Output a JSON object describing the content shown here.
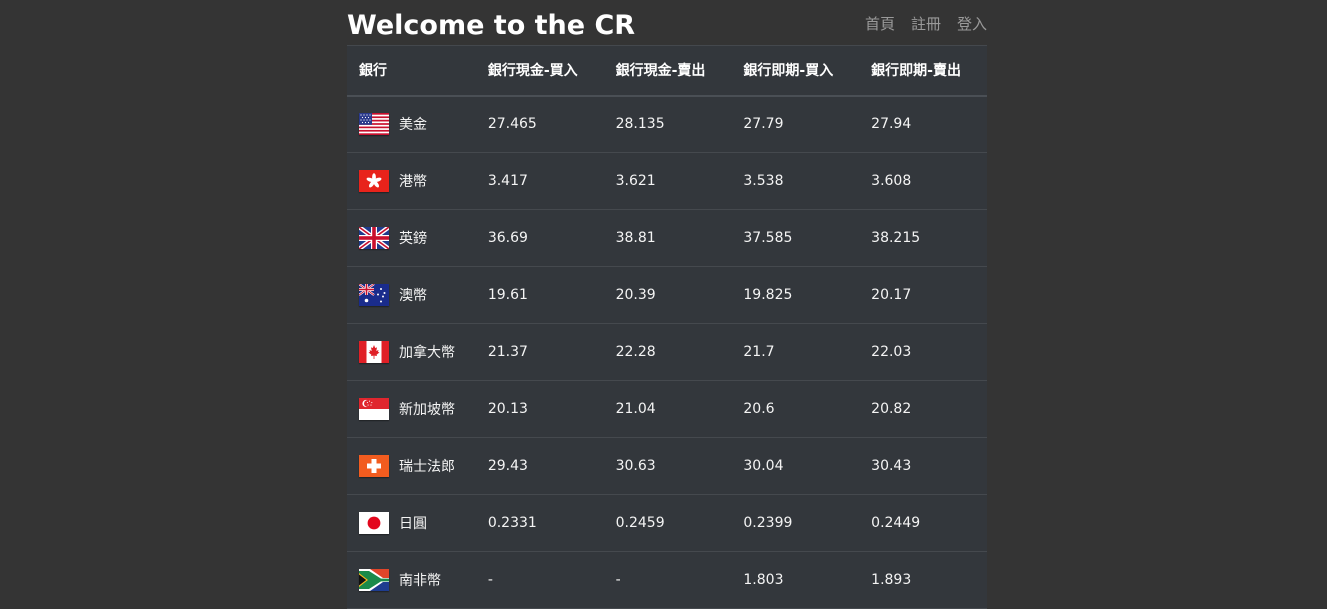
{
  "header": {
    "title": "Welcome to the CR",
    "nav": [
      {
        "label": "首頁"
      },
      {
        "label": "註冊"
      },
      {
        "label": "登入"
      }
    ]
  },
  "table": {
    "columns": [
      "銀行",
      "銀行現金-買入",
      "銀行現金-賣出",
      "銀行即期-買入",
      "銀行即期-賣出"
    ],
    "rows": [
      {
        "flag": "us-flag-icon",
        "name": "美金",
        "cash_buy": "27.465",
        "cash_sell": "28.135",
        "spot_buy": "27.79",
        "spot_sell": "27.94"
      },
      {
        "flag": "hk-flag-icon",
        "name": "港幣",
        "cash_buy": "3.417",
        "cash_sell": "3.621",
        "spot_buy": "3.538",
        "spot_sell": "3.608"
      },
      {
        "flag": "uk-flag-icon",
        "name": "英鎊",
        "cash_buy": "36.69",
        "cash_sell": "38.81",
        "spot_buy": "37.585",
        "spot_sell": "38.215"
      },
      {
        "flag": "au-flag-icon",
        "name": "澳幣",
        "cash_buy": "19.61",
        "cash_sell": "20.39",
        "spot_buy": "19.825",
        "spot_sell": "20.17"
      },
      {
        "flag": "ca-flag-icon",
        "name": "加拿大幣",
        "cash_buy": "21.37",
        "cash_sell": "22.28",
        "spot_buy": "21.7",
        "spot_sell": "22.03"
      },
      {
        "flag": "sg-flag-icon",
        "name": "新加坡幣",
        "cash_buy": "20.13",
        "cash_sell": "21.04",
        "spot_buy": "20.6",
        "spot_sell": "20.82"
      },
      {
        "flag": "ch-flag-icon",
        "name": "瑞士法郎",
        "cash_buy": "29.43",
        "cash_sell": "30.63",
        "spot_buy": "30.04",
        "spot_sell": "30.43"
      },
      {
        "flag": "jp-flag-icon",
        "name": "日圓",
        "cash_buy": "0.2331",
        "cash_sell": "0.2459",
        "spot_buy": "0.2399",
        "spot_sell": "0.2449"
      },
      {
        "flag": "za-flag-icon",
        "name": "南非幣",
        "cash_buy": "-",
        "cash_sell": "-",
        "spot_buy": "1.803",
        "spot_sell": "1.893"
      }
    ]
  },
  "colors": {
    "page_background": "#343434",
    "table_background": "#33373c",
    "nav_link": "#9a9a9a"
  }
}
